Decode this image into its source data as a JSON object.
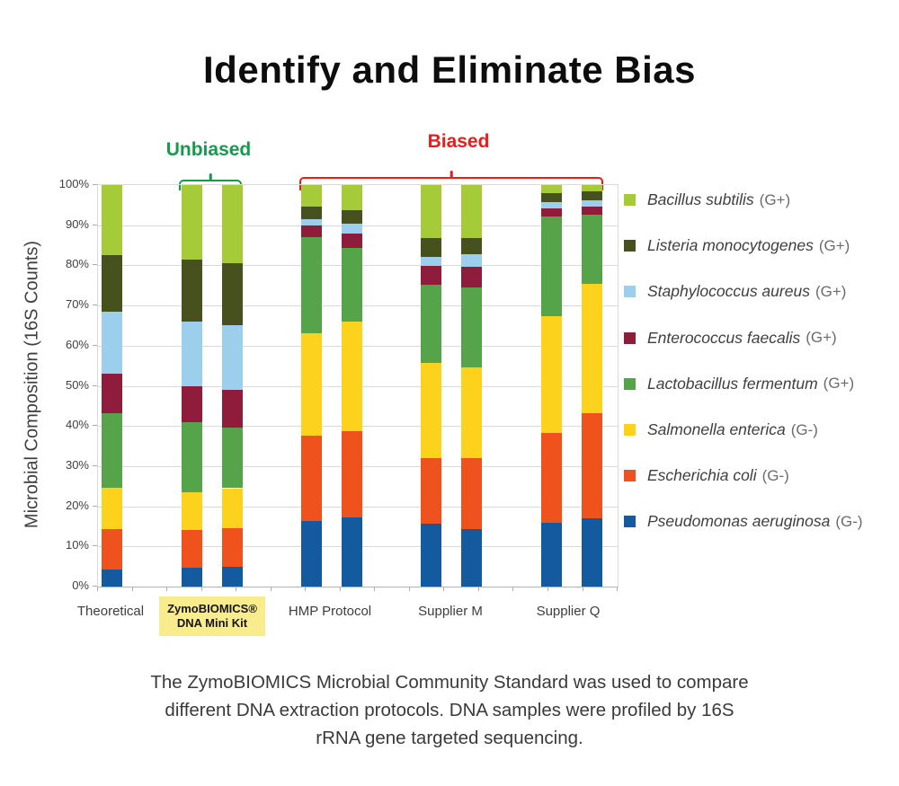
{
  "page": {
    "title": "Identify and Eliminate Bias",
    "background": "#ffffff"
  },
  "annotations": {
    "unbiased": {
      "label": "Unbiased",
      "color": "#169a4c"
    },
    "biased": {
      "label": "Biased",
      "color": "#ee1b1b"
    }
  },
  "chart_data": {
    "type": "bar",
    "stacked": true,
    "title": "",
    "xlabel": "",
    "ylabel": "Microbial Composition (16S Counts)",
    "ylim": [
      0,
      100
    ],
    "yticks": [
      "0%",
      "10%",
      "20%",
      "30%",
      "40%",
      "50%",
      "60%",
      "70%",
      "80%",
      "90%",
      "100%"
    ],
    "grid": true,
    "legend_position": "right",
    "categories": [
      "Theoretical",
      "ZymoBIOMICS® DNA Mini Kit",
      "HMP Protocol",
      "Supplier M",
      "Supplier Q"
    ],
    "bars": [
      {
        "id": "theoretical",
        "category": "Theoretical"
      },
      {
        "id": "zymobiomics-1",
        "category": "ZymoBIOMICS® DNA Mini Kit"
      },
      {
        "id": "zymobiomics-2",
        "category": "ZymoBIOMICS® DNA Mini Kit"
      },
      {
        "id": "hmp-1",
        "category": "HMP Protocol"
      },
      {
        "id": "hmp-2",
        "category": "HMP Protocol"
      },
      {
        "id": "supplier-m-1",
        "category": "Supplier M"
      },
      {
        "id": "supplier-m-2",
        "category": "Supplier M"
      },
      {
        "id": "supplier-q-1",
        "category": "Supplier Q"
      },
      {
        "id": "supplier-q-2",
        "category": "Supplier Q"
      }
    ],
    "stack_order": "bottom-to-top",
    "series": [
      {
        "name": "Pseudomonas aeruginosa",
        "gram": "(G-)",
        "color": "#135b9e",
        "values": [
          4.2,
          4.7,
          5.0,
          16.3,
          17.3,
          15.7,
          14.4,
          15.9,
          16.9
        ]
      },
      {
        "name": "Escherichia coli",
        "gram": "(G-)",
        "color": "#f0521e",
        "values": [
          10.1,
          9.3,
          9.5,
          21.3,
          21.3,
          16.4,
          17.7,
          22.3,
          26.2
        ]
      },
      {
        "name": "Salmonella enterica",
        "gram": "(G-)",
        "color": "#fdd21d",
        "values": [
          10.4,
          9.5,
          10.0,
          25.4,
          27.3,
          23.6,
          22.4,
          29.1,
          32.3
        ]
      },
      {
        "name": "Lactobacillus fermentum",
        "gram": "(G+)",
        "color": "#56a449",
        "values": [
          18.4,
          17.5,
          15.0,
          24.1,
          18.5,
          19.5,
          19.9,
          24.9,
          17.3
        ]
      },
      {
        "name": "Enterococcus faecalis",
        "gram": "(G+)",
        "color": "#8e1c3a",
        "values": [
          9.9,
          9.0,
          9.5,
          2.9,
          3.6,
          4.6,
          5.2,
          2.0,
          2.0
        ]
      },
      {
        "name": "Staphylococcus aureus",
        "gram": "(G+)",
        "color": "#9bcfec",
        "values": [
          15.5,
          16.0,
          16.0,
          1.5,
          2.3,
          2.3,
          3.1,
          1.5,
          1.6
        ]
      },
      {
        "name": "Listeria monocytogenes",
        "gram": "(G+)",
        "color": "#46511e",
        "values": [
          14.1,
          15.5,
          15.5,
          3.2,
          3.5,
          4.7,
          4.2,
          2.3,
          2.2
        ]
      },
      {
        "name": "Bacillus subtilis",
        "gram": "(G+)",
        "color": "#a5cb39",
        "values": [
          17.4,
          18.5,
          19.5,
          5.3,
          6.2,
          13.2,
          13.1,
          2.0,
          1.5
        ]
      }
    ]
  },
  "x_axis": {
    "highlight_bg": "#f9ec8d",
    "labels": [
      {
        "lines": [
          "Theoretical"
        ],
        "highlight": false
      },
      {
        "lines": [
          "ZymoBIOMICS®",
          "DNA Mini Kit"
        ],
        "highlight": true
      },
      {
        "lines": [
          "HMP Protocol"
        ],
        "highlight": false
      },
      {
        "lines": [
          "Supplier M"
        ],
        "highlight": false
      },
      {
        "lines": [
          "Supplier Q"
        ],
        "highlight": false
      }
    ]
  },
  "caption": {
    "lines": [
      "The ZymoBIOMICS Microbial Community Standard was used to compare",
      "different DNA extraction protocols. DNA samples were profiled by 16S",
      "rRNA gene targeted sequencing."
    ]
  }
}
